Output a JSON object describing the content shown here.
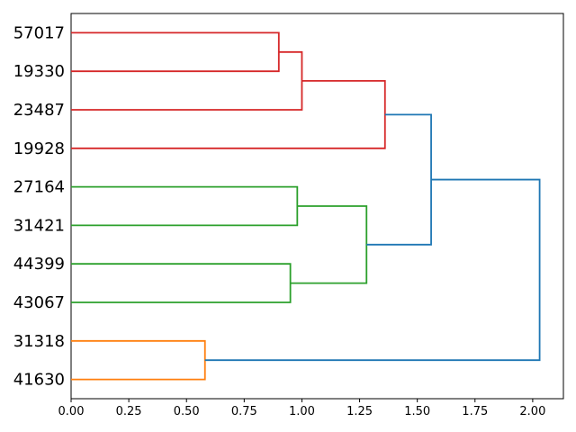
{
  "chart_data": {
    "type": "dendrogram",
    "title": "",
    "xlabel": "",
    "ylabel": "",
    "orientation": "leaves-left-root-right",
    "grid": false,
    "legend": null,
    "leaves": [
      "57017",
      "19330",
      "23487",
      "19928",
      "27164",
      "31421",
      "44399",
      "43067",
      "31318",
      "41630"
    ],
    "merges": [
      {
        "id": "M0",
        "children": [
          "57017",
          "19330"
        ],
        "height": 0.9,
        "color": "red"
      },
      {
        "id": "M1",
        "children": [
          "M0",
          "23487"
        ],
        "height": 1.0,
        "color": "red"
      },
      {
        "id": "M2",
        "children": [
          "M1",
          "19928"
        ],
        "height": 1.36,
        "color": "red"
      },
      {
        "id": "M3",
        "children": [
          "27164",
          "31421"
        ],
        "height": 0.98,
        "color": "green"
      },
      {
        "id": "M4",
        "children": [
          "44399",
          "43067"
        ],
        "height": 0.95,
        "color": "green"
      },
      {
        "id": "M5",
        "children": [
          "M3",
          "M4"
        ],
        "height": 1.28,
        "color": "green"
      },
      {
        "id": "M6",
        "children": [
          "M2",
          "M5"
        ],
        "height": 1.56,
        "color": "blue"
      },
      {
        "id": "M7",
        "children": [
          "31318",
          "41630"
        ],
        "height": 0.58,
        "color": "orange"
      },
      {
        "id": "M8",
        "children": [
          "M6",
          "M7"
        ],
        "height": 2.03,
        "color": "blue"
      }
    ],
    "xticks": [
      {
        "label": "0.00",
        "value": 0.0
      },
      {
        "label": "0.25",
        "value": 0.25
      },
      {
        "label": "0.50",
        "value": 0.5
      },
      {
        "label": "0.75",
        "value": 0.75
      },
      {
        "label": "1.00",
        "value": 1.0
      },
      {
        "label": "1.25",
        "value": 1.25
      },
      {
        "label": "1.50",
        "value": 1.5
      },
      {
        "label": "1.75",
        "value": 1.75
      },
      {
        "label": "2.00",
        "value": 2.0
      }
    ],
    "xlim": [
      0,
      2.133
    ],
    "colors": {
      "red": "#d62728",
      "green": "#2ca02c",
      "orange": "#ff7f0e",
      "blue": "#1f77b4",
      "spine": "#000000",
      "text": "#000000",
      "background": "#ffffff"
    }
  }
}
